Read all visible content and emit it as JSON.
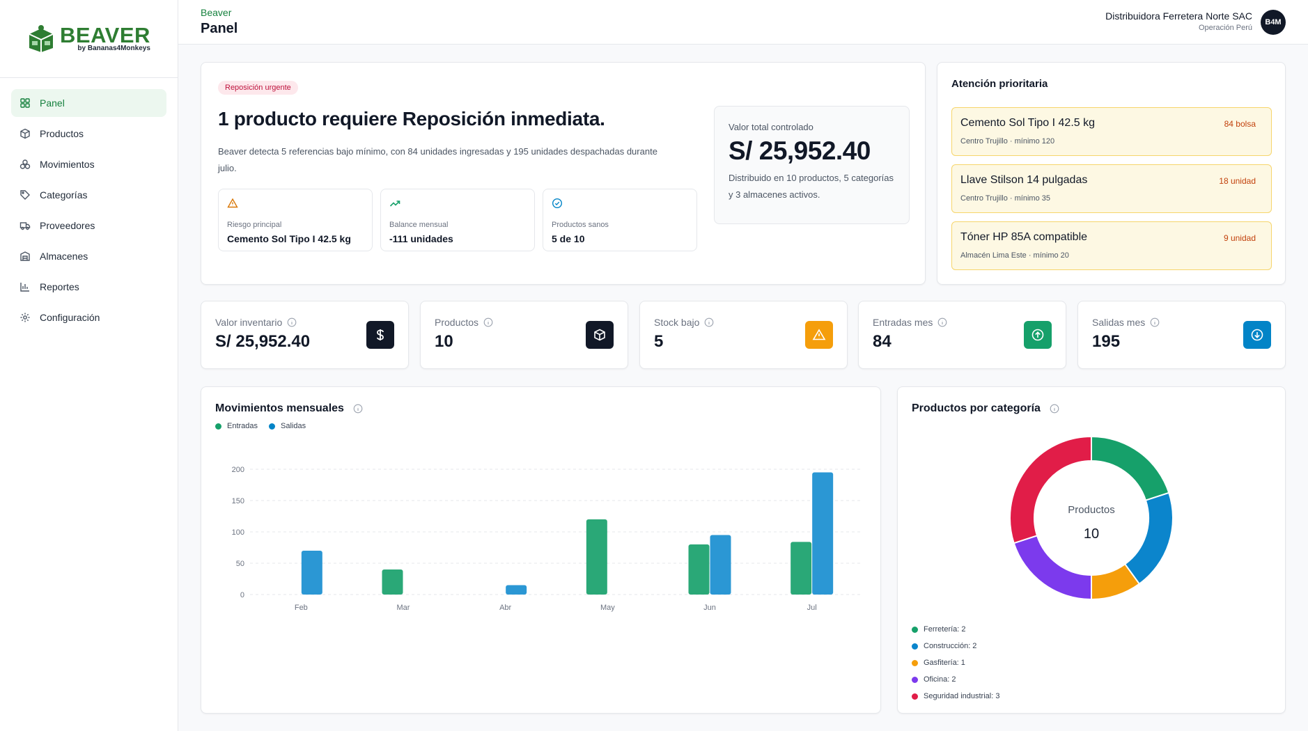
{
  "brand": {
    "name": "BEAVER",
    "sub": "by Bananas4Monkeys"
  },
  "nav": [
    {
      "label": "Panel",
      "icon": "grid-icon",
      "active": true
    },
    {
      "label": "Productos",
      "icon": "box-icon"
    },
    {
      "label": "Movimientos",
      "icon": "movement-icon"
    },
    {
      "label": "Categorías",
      "icon": "tag-icon"
    },
    {
      "label": "Proveedores",
      "icon": "truck-icon"
    },
    {
      "label": "Almacenes",
      "icon": "warehouse-icon"
    },
    {
      "label": "Reportes",
      "icon": "bar-chart-icon"
    },
    {
      "label": "Configuración",
      "icon": "gear-icon"
    }
  ],
  "header": {
    "breadcrumb": "Beaver",
    "title": "Panel",
    "company": "Distribuidora Ferretera Norte SAC",
    "company_sub": "Operación Perú",
    "avatar": "B4M"
  },
  "hero": {
    "badge": "Reposición urgente",
    "title": "1 producto requiere Reposición inmediata.",
    "description": "Beaver detecta 5 referencias bajo mínimo, con 84 unidades ingresadas y 195 unidades despachadas durante julio.",
    "minis": [
      {
        "label": "Riesgo principal",
        "value": "Cemento Sol Tipo I 42.5 kg",
        "icon": "warning-icon"
      },
      {
        "label": "Balance mensual",
        "value": "-111 unidades",
        "icon": "trend-up-icon"
      },
      {
        "label": "Productos sanos",
        "value": "5 de 10",
        "icon": "check-circle-icon"
      }
    ],
    "total_label": "Valor total controlado",
    "total_value": "S/ 25,952.40",
    "total_desc": "Distribuido en 10 productos, 5 categorías y 3 almacenes activos."
  },
  "attention": {
    "title": "Atención prioritaria",
    "items": [
      {
        "name": "Cemento Sol Tipo I 42.5 kg",
        "qty": "84 bolsa",
        "sub": "Centro Trujillo · mínimo 120"
      },
      {
        "name": "Llave Stilson 14 pulgadas",
        "qty": "18 unidad",
        "sub": "Centro Trujillo · mínimo 35"
      },
      {
        "name": "Tóner HP 85A compatible",
        "qty": "9 unidad",
        "sub": "Almacén Lima Este · mínimo 20"
      }
    ]
  },
  "kpis": [
    {
      "label": "Valor inventario",
      "value": "S/ 25,952.40",
      "icon": "dollar-icon",
      "color": "#111827"
    },
    {
      "label": "Productos",
      "value": "10",
      "icon": "box-icon",
      "color": "#111827"
    },
    {
      "label": "Stock bajo",
      "value": "5",
      "icon": "warning-icon",
      "color": "#f59e0b"
    },
    {
      "label": "Entradas mes",
      "value": "84",
      "icon": "arrow-up-circle-icon",
      "color": "#16a06a"
    },
    {
      "label": "Salidas mes",
      "value": "195",
      "icon": "arrow-down-circle-icon",
      "color": "#0284c7"
    }
  ],
  "colors": {
    "entradas": "#2aa877",
    "salidas": "#2b97d4",
    "ferreteria": "#16a06a",
    "construccion": "#0b85cc",
    "gasfiteria": "#f59e0b",
    "oficina": "#7c3aed",
    "seguridad": "#e11d48"
  },
  "chart_data": [
    {
      "type": "bar",
      "title": "Movimientos mensuales",
      "categories": [
        "Feb",
        "Mar",
        "Abr",
        "May",
        "Jun",
        "Jul"
      ],
      "series": [
        {
          "name": "Entradas",
          "values": [
            0,
            40,
            0,
            120,
            80,
            84
          ]
        },
        {
          "name": "Salidas",
          "values": [
            70,
            0,
            15,
            0,
            95,
            195
          ]
        }
      ],
      "ylim": [
        0,
        200
      ],
      "yticks": [
        0,
        50,
        100,
        150,
        200
      ],
      "grid": true,
      "legend": "top-left"
    },
    {
      "type": "pie",
      "title": "Productos por categoría",
      "center_label": "Productos",
      "center_value": "10",
      "slices": [
        {
          "label": "Ferretería: 2",
          "value": 2
        },
        {
          "label": "Construcción: 2",
          "value": 2
        },
        {
          "label": "Gasfitería: 1",
          "value": 1
        },
        {
          "label": "Oficina: 2",
          "value": 2
        },
        {
          "label": "Seguridad industrial: 3",
          "value": 3
        }
      ],
      "legend": "bottom-left"
    }
  ]
}
